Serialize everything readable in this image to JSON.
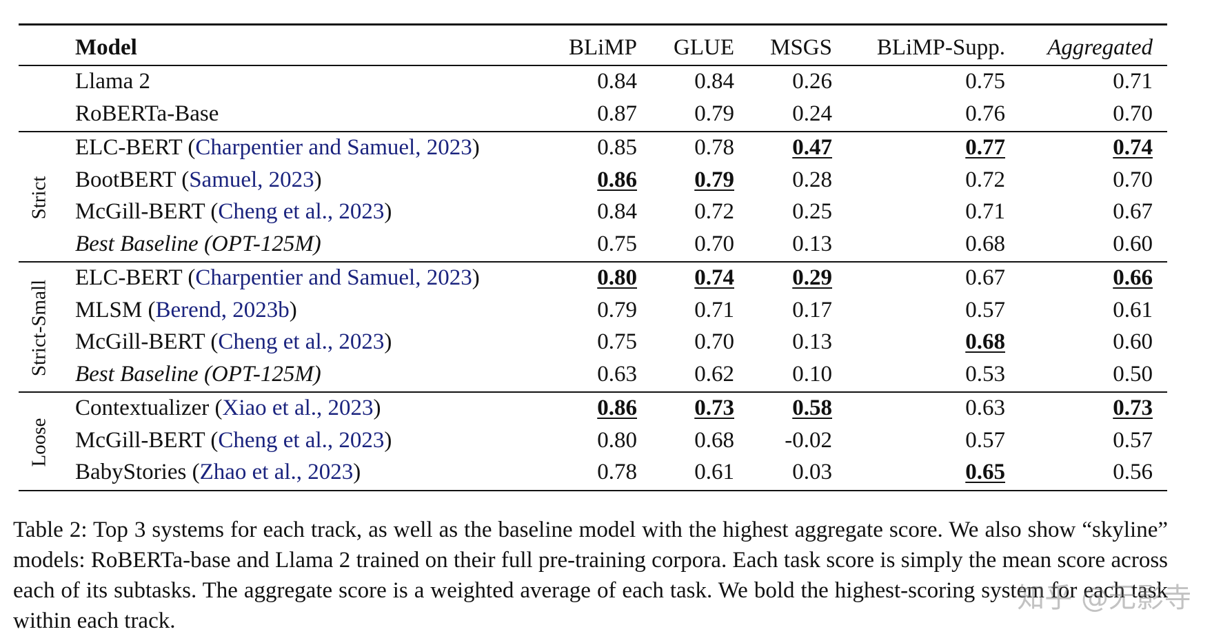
{
  "header": [
    "Model",
    "BLiMP",
    "GLUE",
    "MSGS",
    "BLiMP-Supp.",
    "Aggregated"
  ],
  "header_italic": [
    false,
    false,
    false,
    false,
    false,
    true
  ],
  "groups": [
    {
      "label": null,
      "rows": [
        {
          "parts": [
            {
              "text": "Llama 2"
            }
          ],
          "italic": false,
          "values": [
            "0.84",
            "0.84",
            "0.26",
            "0.75",
            "0.71"
          ],
          "bold": [
            false,
            false,
            false,
            false,
            false
          ]
        },
        {
          "parts": [
            {
              "text": "RoBERTa-Base"
            }
          ],
          "italic": false,
          "values": [
            "0.87",
            "0.79",
            "0.24",
            "0.76",
            "0.70"
          ],
          "bold": [
            false,
            false,
            false,
            false,
            false
          ]
        }
      ]
    },
    {
      "label": "Strict",
      "rows": [
        {
          "parts": [
            {
              "text": "ELC-BERT ("
            },
            {
              "text": "Charpentier and Samuel, 2023",
              "link": true
            },
            {
              "text": ")"
            }
          ],
          "italic": false,
          "values": [
            "0.85",
            "0.78",
            "0.47",
            "0.77",
            "0.74"
          ],
          "bold": [
            false,
            false,
            true,
            true,
            true
          ]
        },
        {
          "parts": [
            {
              "text": "BootBERT ("
            },
            {
              "text": "Samuel, 2023",
              "link": true
            },
            {
              "text": ")"
            }
          ],
          "italic": false,
          "values": [
            "0.86",
            "0.79",
            "0.28",
            "0.72",
            "0.70"
          ],
          "bold": [
            true,
            true,
            false,
            false,
            false
          ]
        },
        {
          "parts": [
            {
              "text": "McGill-BERT ("
            },
            {
              "text": "Cheng et al., 2023",
              "link": true
            },
            {
              "text": ")"
            }
          ],
          "italic": false,
          "values": [
            "0.84",
            "0.72",
            "0.25",
            "0.71",
            "0.67"
          ],
          "bold": [
            false,
            false,
            false,
            false,
            false
          ]
        },
        {
          "parts": [
            {
              "text": "Best Baseline (OPT-125M)"
            }
          ],
          "italic": true,
          "values": [
            "0.75",
            "0.70",
            "0.13",
            "0.68",
            "0.60"
          ],
          "bold": [
            false,
            false,
            false,
            false,
            false
          ]
        }
      ]
    },
    {
      "label": "Strict-Small",
      "rows": [
        {
          "parts": [
            {
              "text": "ELC-BERT ("
            },
            {
              "text": "Charpentier and Samuel, 2023",
              "link": true
            },
            {
              "text": ")"
            }
          ],
          "italic": false,
          "values": [
            "0.80",
            "0.74",
            "0.29",
            "0.67",
            "0.66"
          ],
          "bold": [
            true,
            true,
            true,
            false,
            true
          ]
        },
        {
          "parts": [
            {
              "text": "MLSM ("
            },
            {
              "text": "Berend, 2023b",
              "link": true
            },
            {
              "text": ")"
            }
          ],
          "italic": false,
          "values": [
            "0.79",
            "0.71",
            "0.17",
            "0.57",
            "0.61"
          ],
          "bold": [
            false,
            false,
            false,
            false,
            false
          ]
        },
        {
          "parts": [
            {
              "text": "McGill-BERT ("
            },
            {
              "text": "Cheng et al., 2023",
              "link": true
            },
            {
              "text": ")"
            }
          ],
          "italic": false,
          "values": [
            "0.75",
            "0.70",
            "0.13",
            "0.68",
            "0.60"
          ],
          "bold": [
            false,
            false,
            false,
            true,
            false
          ]
        },
        {
          "parts": [
            {
              "text": "Best Baseline (OPT-125M)"
            }
          ],
          "italic": true,
          "values": [
            "0.63",
            "0.62",
            "0.10",
            "0.53",
            "0.50"
          ],
          "bold": [
            false,
            false,
            false,
            false,
            false
          ]
        }
      ]
    },
    {
      "label": "Loose",
      "rows": [
        {
          "parts": [
            {
              "text": "Contextualizer ("
            },
            {
              "text": "Xiao et al., 2023",
              "link": true
            },
            {
              "text": ")"
            }
          ],
          "italic": false,
          "values": [
            "0.86",
            "0.73",
            "0.58",
            "0.63",
            "0.73"
          ],
          "bold": [
            true,
            true,
            true,
            false,
            true
          ]
        },
        {
          "parts": [
            {
              "text": "McGill-BERT ("
            },
            {
              "text": "Cheng et al., 2023",
              "link": true
            },
            {
              "text": ")"
            }
          ],
          "italic": false,
          "values": [
            "0.80",
            "0.68",
            "-0.02",
            "0.57",
            "0.57"
          ],
          "bold": [
            false,
            false,
            false,
            false,
            false
          ]
        },
        {
          "parts": [
            {
              "text": "BabyStories ("
            },
            {
              "text": "Zhao et al., 2023",
              "link": true
            },
            {
              "text": ")"
            }
          ],
          "italic": false,
          "values": [
            "0.78",
            "0.61",
            "0.03",
            "0.65",
            "0.56"
          ],
          "bold": [
            false,
            false,
            false,
            true,
            false
          ]
        }
      ]
    }
  ],
  "caption": "Table 2: Top 3 systems for each track, as well as the baseline model with the highest aggregate score. We also show “skyline” models: RoBERTa-base and Llama 2 trained on their full pre-training corpora. Each task score is simply the mean score across each of its subtasks. The aggregate score is a weighted average of each task. We bold the highest-scoring system for each task within each track.",
  "watermark": "知乎 @无影寺"
}
